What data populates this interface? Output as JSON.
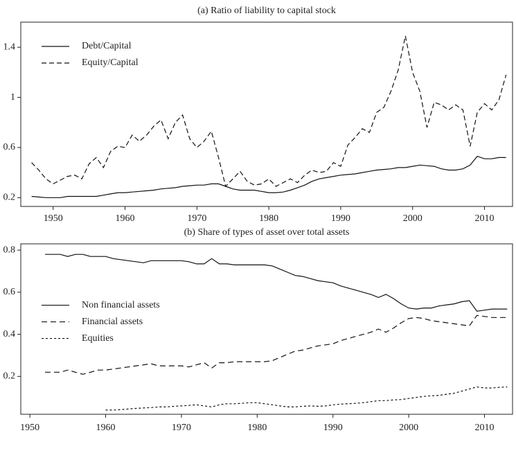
{
  "chart_data": [
    {
      "type": "line",
      "title": "(a) Ratio of liability to capital stock",
      "x": [
        1947,
        1948,
        1949,
        1950,
        1951,
        1952,
        1953,
        1954,
        1955,
        1956,
        1957,
        1958,
        1959,
        1960,
        1961,
        1962,
        1963,
        1964,
        1965,
        1966,
        1967,
        1968,
        1969,
        1970,
        1971,
        1972,
        1973,
        1974,
        1975,
        1976,
        1977,
        1978,
        1979,
        1980,
        1981,
        1982,
        1983,
        1984,
        1985,
        1986,
        1987,
        1988,
        1989,
        1990,
        1991,
        1992,
        1993,
        1994,
        1995,
        1996,
        1997,
        1998,
        1999,
        2000,
        2001,
        2002,
        2003,
        2004,
        2005,
        2006,
        2007,
        2008,
        2009,
        2010,
        2011,
        2012,
        2013
      ],
      "series": [
        {
          "name": "Debt/Capital",
          "color": "#111111",
          "dash": "none",
          "values": [
            0.21,
            0.205,
            0.2,
            0.2,
            0.2,
            0.21,
            0.21,
            0.21,
            0.21,
            0.21,
            0.22,
            0.23,
            0.24,
            0.24,
            0.245,
            0.25,
            0.255,
            0.26,
            0.27,
            0.275,
            0.28,
            0.29,
            0.295,
            0.3,
            0.3,
            0.31,
            0.31,
            0.29,
            0.27,
            0.26,
            0.26,
            0.26,
            0.25,
            0.24,
            0.24,
            0.245,
            0.26,
            0.28,
            0.3,
            0.33,
            0.35,
            0.36,
            0.37,
            0.38,
            0.385,
            0.39,
            0.4,
            0.41,
            0.42,
            0.425,
            0.43,
            0.44,
            0.44,
            0.45,
            0.46,
            0.455,
            0.45,
            0.43,
            0.42,
            0.42,
            0.43,
            0.46,
            0.53,
            0.51,
            0.51,
            0.52,
            0.52
          ]
        },
        {
          "name": "Equity/Capital",
          "color": "#111111",
          "dash": "7,4",
          "values": [
            0.48,
            0.42,
            0.35,
            0.31,
            0.34,
            0.37,
            0.38,
            0.35,
            0.47,
            0.52,
            0.44,
            0.57,
            0.61,
            0.6,
            0.7,
            0.65,
            0.7,
            0.77,
            0.82,
            0.67,
            0.8,
            0.86,
            0.67,
            0.6,
            0.65,
            0.73,
            0.52,
            0.29,
            0.35,
            0.41,
            0.33,
            0.3,
            0.31,
            0.35,
            0.29,
            0.32,
            0.35,
            0.32,
            0.38,
            0.42,
            0.4,
            0.41,
            0.48,
            0.45,
            0.62,
            0.68,
            0.75,
            0.72,
            0.88,
            0.92,
            1.05,
            1.22,
            1.49,
            1.2,
            1.05,
            0.76,
            0.96,
            0.94,
            0.9,
            0.94,
            0.9,
            0.61,
            0.88,
            0.95,
            0.9,
            0.98,
            1.18
          ]
        }
      ],
      "xlim": [
        1945.5,
        2013.9
      ],
      "xticks": [
        1950,
        1960,
        1970,
        1980,
        1990,
        2000,
        2010
      ],
      "ylim": [
        0.13,
        1.6
      ],
      "yticks": [
        0.2,
        0.6,
        1.0,
        1.4
      ],
      "legend": "upper left"
    },
    {
      "type": "line",
      "title": "(b) Share of types of asset over total assets",
      "x": [
        1952,
        1953,
        1954,
        1955,
        1956,
        1957,
        1958,
        1959,
        1960,
        1961,
        1962,
        1963,
        1964,
        1965,
        1966,
        1967,
        1968,
        1969,
        1970,
        1971,
        1972,
        1973,
        1974,
        1975,
        1976,
        1977,
        1978,
        1979,
        1980,
        1981,
        1982,
        1983,
        1984,
        1985,
        1986,
        1987,
        1988,
        1989,
        1990,
        1991,
        1992,
        1993,
        1994,
        1995,
        1996,
        1997,
        1998,
        1999,
        2000,
        2001,
        2002,
        2003,
        2004,
        2005,
        2006,
        2007,
        2008,
        2009,
        2010,
        2011,
        2012,
        2013
      ],
      "series": [
        {
          "name": "Non financial assets",
          "color": "#111111",
          "dash": "none",
          "values": [
            0.78,
            0.78,
            0.78,
            0.77,
            0.78,
            0.78,
            0.77,
            0.77,
            0.77,
            0.76,
            0.755,
            0.75,
            0.745,
            0.74,
            0.75,
            0.75,
            0.75,
            0.75,
            0.75,
            0.745,
            0.735,
            0.735,
            0.76,
            0.735,
            0.735,
            0.73,
            0.73,
            0.73,
            0.73,
            0.73,
            0.725,
            0.71,
            0.695,
            0.68,
            0.675,
            0.665,
            0.655,
            0.65,
            0.645,
            0.63,
            0.62,
            0.61,
            0.6,
            0.59,
            0.575,
            0.59,
            0.57,
            0.545,
            0.525,
            0.52,
            0.525,
            0.525,
            0.535,
            0.54,
            0.545,
            0.555,
            0.56,
            0.51,
            0.515,
            0.52,
            0.52,
            0.52
          ]
        },
        {
          "name": "Financial assets",
          "color": "#111111",
          "dash": "8,5",
          "values": [
            0.22,
            0.22,
            0.22,
            0.23,
            0.22,
            0.21,
            0.22,
            0.23,
            0.23,
            0.235,
            0.24,
            0.245,
            0.25,
            0.255,
            0.26,
            0.25,
            0.25,
            0.25,
            0.25,
            0.245,
            0.255,
            0.265,
            0.24,
            0.265,
            0.265,
            0.27,
            0.27,
            0.27,
            0.27,
            0.27,
            0.275,
            0.29,
            0.305,
            0.32,
            0.325,
            0.335,
            0.345,
            0.35,
            0.355,
            0.37,
            0.38,
            0.39,
            0.4,
            0.41,
            0.425,
            0.41,
            0.43,
            0.455,
            0.475,
            0.48,
            0.475,
            0.465,
            0.46,
            0.455,
            0.45,
            0.445,
            0.44,
            0.49,
            0.485,
            0.48,
            0.48,
            0.48
          ]
        },
        {
          "name": "Equities",
          "color": "#111111",
          "dash": "3,3",
          "values": [
            null,
            null,
            null,
            null,
            null,
            null,
            null,
            null,
            0.04,
            0.04,
            0.042,
            0.045,
            0.048,
            0.05,
            0.052,
            0.055,
            0.055,
            0.058,
            0.06,
            0.062,
            0.065,
            0.06,
            0.055,
            0.065,
            0.07,
            0.07,
            0.072,
            0.075,
            0.075,
            0.07,
            0.065,
            0.06,
            0.055,
            0.055,
            0.058,
            0.06,
            0.058,
            0.06,
            0.065,
            0.068,
            0.07,
            0.072,
            0.075,
            0.08,
            0.085,
            0.085,
            0.088,
            0.09,
            0.095,
            0.1,
            0.105,
            0.108,
            0.11,
            0.115,
            0.12,
            0.13,
            0.14,
            0.15,
            0.145,
            0.145,
            0.148,
            0.15
          ]
        }
      ],
      "xlim": [
        1948.8,
        2013.7
      ],
      "xticks": [
        1950,
        1960,
        1970,
        1980,
        1990,
        2000,
        2010
      ],
      "ylim": [
        0.02,
        0.83
      ],
      "yticks": [
        0.2,
        0.4,
        0.6,
        0.8
      ],
      "legend": "center left"
    }
  ]
}
